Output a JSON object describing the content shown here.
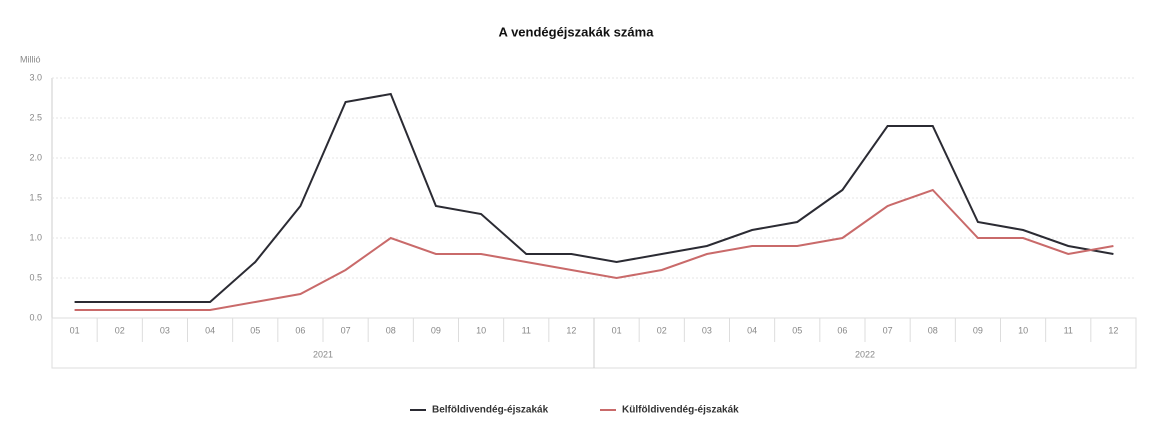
{
  "chart_data": {
    "type": "line",
    "title": "A vendégéjszakák száma",
    "y_label": "Millió",
    "categories": [
      "01",
      "02",
      "03",
      "04",
      "05",
      "06",
      "07",
      "08",
      "09",
      "10",
      "11",
      "12",
      "01",
      "02",
      "03",
      "04",
      "05",
      "06",
      "07",
      "08",
      "09",
      "10",
      "11",
      "12"
    ],
    "groups": [
      {
        "label": "2021",
        "count": 12
      },
      {
        "label": "2022",
        "count": 12
      }
    ],
    "series": [
      {
        "name": "Belföldivendég-éjszakák",
        "color": "#2b2b33",
        "values": [
          0.2,
          0.2,
          0.2,
          0.2,
          0.7,
          1.4,
          2.7,
          2.8,
          1.4,
          1.3,
          0.8,
          0.8,
          0.7,
          0.8,
          0.9,
          1.1,
          1.2,
          1.6,
          2.4,
          2.4,
          1.2,
          1.1,
          0.9,
          0.8
        ]
      },
      {
        "name": "Külföldivendég-éjszakák",
        "color": "#c96a6a",
        "values": [
          0.1,
          0.1,
          0.1,
          0.1,
          0.2,
          0.3,
          0.6,
          1.0,
          0.8,
          0.8,
          0.7,
          0.6,
          0.5,
          0.6,
          0.8,
          0.9,
          0.9,
          1.0,
          1.4,
          1.6,
          1.0,
          1.0,
          0.8,
          0.9
        ]
      }
    ],
    "ylim": [
      0,
      3
    ],
    "yticks": [
      {
        "value": 0,
        "label": "0.0"
      },
      0.5,
      {
        "value": 1,
        "label": "1.0"
      },
      1.5,
      {
        "value": 2,
        "label": "2.0"
      },
      2.5,
      {
        "value": 3,
        "label": "3.0"
      }
    ],
    "grid": true,
    "legend": "bottom"
  }
}
